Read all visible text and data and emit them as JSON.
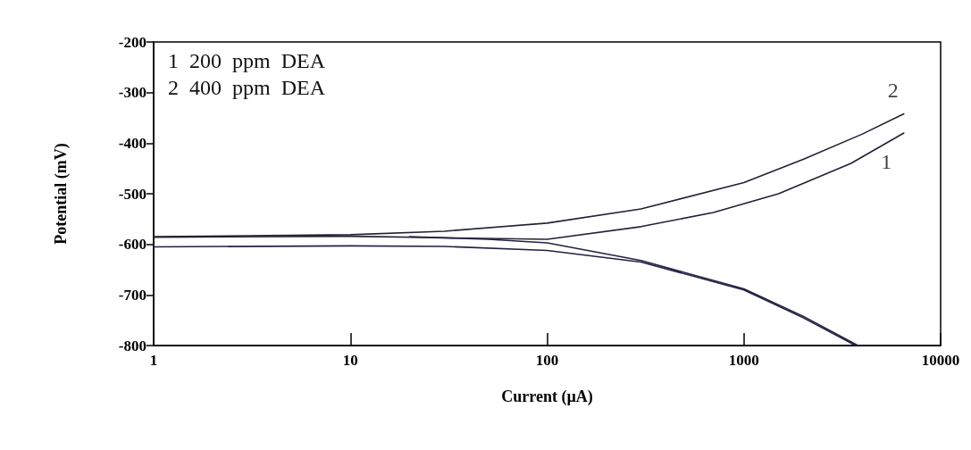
{
  "chart_data": {
    "type": "line",
    "xlabel": "Current (µA)",
    "ylabel": "Potential (mV)",
    "log": "x",
    "xlim": [
      1,
      10000
    ],
    "xticks": [
      1,
      10,
      100,
      1000,
      10000
    ],
    "ylim": [
      -800,
      -200
    ],
    "yticks": [
      -800,
      -700,
      -600,
      -500,
      -400,
      -300,
      -200
    ],
    "grid": false,
    "marker": "none",
    "line_style": "solid",
    "annotations": [
      "1  200  ppm  DEA",
      "2  400  ppm  DEA",
      {
        "text": "2",
        "x": 6500,
        "y": -342
      },
      {
        "text": "1",
        "x": 6000,
        "y": -390
      }
    ],
    "series": [
      {
        "color": "#222233",
        "x": [
          1,
          10,
          30,
          100,
          300,
          1000,
          2000,
          4000,
          6500
        ],
        "values": [
          -585,
          -581,
          -574,
          -558,
          -530,
          -478,
          -432,
          -382,
          -342
        ]
      },
      {
        "color": "#222233",
        "x": [
          1,
          10,
          30,
          100,
          300,
          700,
          1500,
          3500,
          6500
        ],
        "values": [
          -586,
          -584,
          -587,
          -590,
          -565,
          -537,
          -500,
          -440,
          -380
        ]
      },
      {
        "color": "#222244",
        "x": [
          1,
          10,
          30,
          100,
          300,
          1000,
          2000,
          3700
        ],
        "values": [
          -605,
          -603,
          -604,
          -612,
          -635,
          -690,
          -745,
          -800
        ]
      },
      {
        "color": "#222244",
        "x": [
          20,
          50,
          100,
          300,
          1000,
          2000,
          3800
        ],
        "values": [
          -585,
          -590,
          -597,
          -632,
          -688,
          -742,
          -800
        ]
      }
    ]
  }
}
